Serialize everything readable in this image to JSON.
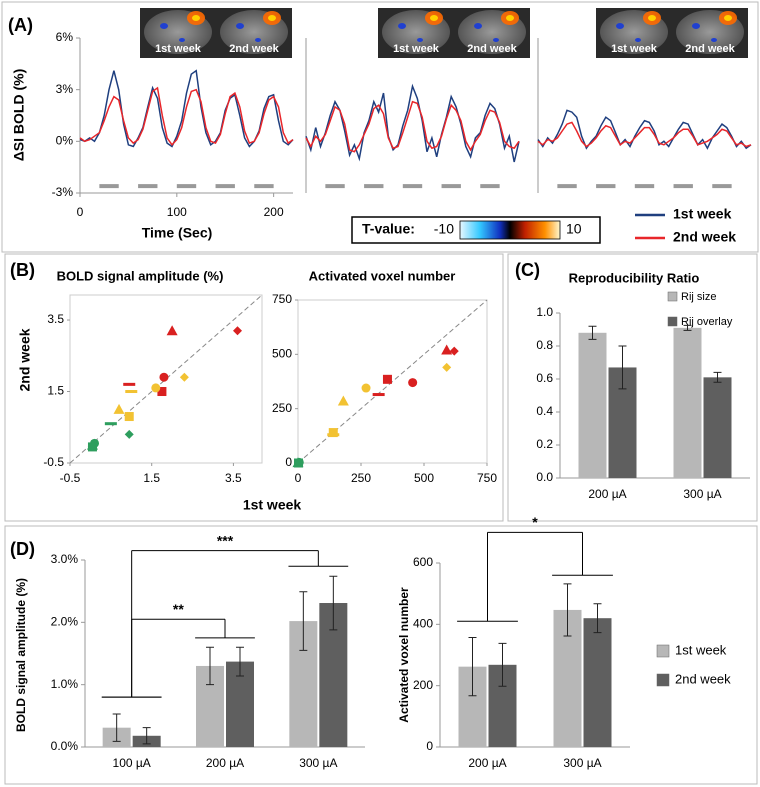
{
  "chart_data": [
    {
      "type": "line",
      "panel": "(A)",
      "ylabel": "ΔSI BOLD (%)",
      "xlabel": "Time (Sec)",
      "xlim": [
        0,
        220
      ],
      "xticks": [
        0,
        100,
        200
      ],
      "ylim": [
        -3,
        6
      ],
      "yticks": [
        {
          "value": -3,
          "label": "-3%"
        },
        {
          "value": 0,
          "label": "0%"
        },
        {
          "value": 3,
          "label": "3%"
        },
        {
          "value": 6,
          "label": "6%"
        }
      ],
      "x": [
        0,
        5,
        10,
        15,
        20,
        25,
        30,
        35,
        40,
        45,
        50,
        55,
        60,
        65,
        70,
        75,
        80,
        85,
        90,
        95,
        100,
        105,
        110,
        115,
        120,
        125,
        130,
        135,
        140,
        145,
        150,
        155,
        160,
        165,
        170,
        175,
        180,
        185,
        190,
        195,
        200,
        205,
        210,
        215,
        220
      ],
      "stimulus": {
        "level": -2.6,
        "blocks": [
          [
            20,
            40
          ],
          [
            60,
            80
          ],
          [
            100,
            120
          ],
          [
            140,
            160
          ],
          [
            180,
            200
          ]
        ]
      },
      "colorbar": {
        "label": "T-value:",
        "lim": [
          -10,
          10
        ],
        "ticks": [
          -10,
          10
        ]
      },
      "subplots": [
        {
          "inset_labels": [
            "1st week",
            "2nd week"
          ],
          "series": [
            {
              "name": "1st week",
              "color": "#1f3f7f",
              "values": [
                0.1,
                0.0,
                0.2,
                0.0,
                0.5,
                1.5,
                3.0,
                4.1,
                3.0,
                1.0,
                -0.2,
                -0.3,
                0.2,
                0.8,
                2.0,
                3.1,
                2.5,
                0.8,
                -0.1,
                -0.3,
                0.3,
                1.2,
                2.8,
                3.9,
                4.1,
                2.0,
                0.5,
                -0.2,
                0.0,
                0.5,
                1.8,
                2.5,
                2.7,
                1.5,
                0.2,
                -0.3,
                0.0,
                0.6,
                1.9,
                2.6,
                2.7,
                1.2,
                0.0,
                -0.2,
                0.1
              ]
            },
            {
              "name": "2nd week",
              "color": "#e8262a",
              "values": [
                0.2,
                0.0,
                0.1,
                0.3,
                0.5,
                1.2,
                2.0,
                2.6,
                2.4,
                1.2,
                0.2,
                -0.1,
                0.1,
                0.7,
                1.8,
                2.9,
                3.1,
                1.5,
                0.2,
                -0.2,
                0.1,
                0.8,
                2.0,
                2.9,
                3.0,
                2.3,
                0.8,
                0.0,
                -0.1,
                0.4,
                1.6,
                2.6,
                2.8,
                2.0,
                0.6,
                -0.1,
                0.0,
                0.5,
                1.6,
                2.4,
                2.6,
                2.0,
                0.5,
                -0.1,
                0.1
              ]
            }
          ]
        },
        {
          "inset_labels": [
            "1st week",
            "2nd week"
          ],
          "series": [
            {
              "name": "1st week",
              "color": "#1f3f7f",
              "values": [
                0.3,
                -0.5,
                0.8,
                -0.3,
                0.5,
                1.5,
                2.3,
                1.8,
                0.6,
                -0.8,
                -0.2,
                -1.0,
                0.5,
                1.2,
                2.3,
                1.7,
                2.8,
                0.3,
                -0.5,
                -0.2,
                0.9,
                1.8,
                3.2,
                2.5,
                1.2,
                -0.6,
                0.2,
                -0.9,
                0.4,
                1.4,
                2.6,
                2.0,
                1.0,
                -0.3,
                -0.9,
                0.2,
                0.5,
                1.5,
                2.2,
                1.9,
                1.0,
                -0.4,
                0.3,
                -1.2,
                0.0
              ]
            },
            {
              "name": "2nd week",
              "color": "#e8262a",
              "values": [
                0.2,
                -0.3,
                0.3,
                0.0,
                0.4,
                1.2,
                2.0,
                1.8,
                1.0,
                -0.5,
                -0.6,
                -0.2,
                0.4,
                1.0,
                1.9,
                2.1,
                1.6,
                0.2,
                -0.4,
                -0.3,
                0.5,
                1.4,
                2.3,
                2.2,
                1.4,
                0.0,
                -0.4,
                -0.3,
                0.3,
                1.3,
                2.1,
                1.8,
                1.2,
                0.0,
                -0.5,
                0.0,
                0.4,
                1.2,
                1.8,
                1.7,
                1.1,
                0.0,
                -0.3,
                -0.4,
                0.0
              ]
            }
          ]
        },
        {
          "inset_labels": [
            "1st week",
            "2nd week"
          ],
          "series": [
            {
              "name": "1st week",
              "color": "#1f3f7f",
              "values": [
                0.1,
                -0.3,
                0.2,
                -0.1,
                0.4,
                1.0,
                1.8,
                1.7,
                1.4,
                0.3,
                -0.4,
                0.0,
                0.3,
                0.9,
                1.4,
                1.2,
                0.5,
                -0.2,
                0.1,
                -0.3,
                0.3,
                0.8,
                1.2,
                1.1,
                0.6,
                -0.2,
                0.0,
                -0.3,
                0.2,
                0.7,
                1.1,
                1.0,
                0.4,
                -0.2,
                0.1,
                -0.4,
                0.2,
                0.6,
                1.0,
                0.8,
                0.3,
                -0.3,
                0.0,
                -0.4,
                -0.2
              ]
            },
            {
              "name": "2nd week",
              "color": "#e8262a",
              "values": [
                0.0,
                -0.2,
                0.1,
                0.0,
                0.2,
                0.6,
                1.0,
                1.1,
                0.6,
                0.0,
                -0.3,
                -0.1,
                0.2,
                0.6,
                0.9,
                0.8,
                0.3,
                -0.2,
                0.0,
                -0.1,
                0.2,
                0.5,
                0.8,
                0.8,
                0.4,
                -0.1,
                -0.2,
                0.0,
                0.2,
                0.5,
                0.7,
                0.7,
                0.3,
                -0.2,
                -0.1,
                0.0,
                0.2,
                0.4,
                0.7,
                0.6,
                0.2,
                -0.2,
                -0.1,
                -0.3,
                -0.2
              ]
            }
          ]
        }
      ]
    },
    {
      "type": "scatter",
      "panel": "(B)",
      "title": "BOLD signal amplitude (%)",
      "xlabel": "1st week",
      "ylabel": "2nd week",
      "xlim": [
        -0.5,
        4.2
      ],
      "xticks": [
        -0.5,
        1.5,
        3.5
      ],
      "ylim": [
        -0.5,
        4.2
      ],
      "yticks": [
        -0.5,
        1.5,
        3.5
      ],
      "points": [
        {
          "x": 2.0,
          "y": 3.2,
          "shape": "triangle",
          "color": "#d92020"
        },
        {
          "x": 3.6,
          "y": 3.2,
          "shape": "diamond",
          "color": "#d92020"
        },
        {
          "x": 1.8,
          "y": 1.9,
          "shape": "circle",
          "color": "#d92020"
        },
        {
          "x": 1.75,
          "y": 1.5,
          "shape": "square",
          "color": "#d92020"
        },
        {
          "x": 0.95,
          "y": 1.7,
          "shape": "dash",
          "color": "#d92020"
        },
        {
          "x": 2.3,
          "y": 1.9,
          "shape": "diamond",
          "color": "#f2c232"
        },
        {
          "x": 1.6,
          "y": 1.6,
          "shape": "circle",
          "color": "#f2c232"
        },
        {
          "x": 1.0,
          "y": 1.5,
          "shape": "dash",
          "color": "#f2c232"
        },
        {
          "x": 0.7,
          "y": 1.0,
          "shape": "triangle",
          "color": "#f2c232"
        },
        {
          "x": 0.95,
          "y": 0.8,
          "shape": "square",
          "color": "#f2c232"
        },
        {
          "x": 0.5,
          "y": 0.6,
          "shape": "dash",
          "color": "#2e9e5e"
        },
        {
          "x": 0.95,
          "y": 0.3,
          "shape": "diamond",
          "color": "#2e9e5e"
        },
        {
          "x": 0.1,
          "y": 0.05,
          "shape": "circle",
          "color": "#2e9e5e"
        },
        {
          "x": 0.05,
          "y": -0.05,
          "shape": "square",
          "color": "#2e9e5e"
        },
        {
          "x": 0.05,
          "y": 0.0,
          "shape": "triangle",
          "color": "#2e9e5e"
        }
      ]
    },
    {
      "type": "scatter",
      "title": "Activated voxel number",
      "xlim": [
        0,
        750
      ],
      "xticks": [
        0,
        250,
        500,
        750
      ],
      "ylim": [
        0,
        750
      ],
      "yticks": [
        0,
        250,
        500,
        750
      ],
      "points": [
        {
          "x": 620,
          "y": 515,
          "shape": "diamond",
          "color": "#d92020"
        },
        {
          "x": 590,
          "y": 520,
          "shape": "triangle",
          "color": "#d92020"
        },
        {
          "x": 455,
          "y": 370,
          "shape": "circle",
          "color": "#d92020"
        },
        {
          "x": 355,
          "y": 385,
          "shape": "square",
          "color": "#d92020"
        },
        {
          "x": 320,
          "y": 315,
          "shape": "dash",
          "color": "#d92020"
        },
        {
          "x": 590,
          "y": 440,
          "shape": "diamond",
          "color": "#f2c232"
        },
        {
          "x": 270,
          "y": 345,
          "shape": "circle",
          "color": "#f2c232"
        },
        {
          "x": 180,
          "y": 285,
          "shape": "triangle",
          "color": "#f2c232"
        },
        {
          "x": 140,
          "y": 140,
          "shape": "square",
          "color": "#f2c232"
        },
        {
          "x": 140,
          "y": 130,
          "shape": "dash",
          "color": "#f2c232"
        },
        {
          "x": 5,
          "y": 3,
          "shape": "circle",
          "color": "#2e9e5e"
        },
        {
          "x": 2,
          "y": 0,
          "shape": "square",
          "color": "#2e9e5e"
        },
        {
          "x": 0,
          "y": 2,
          "shape": "triangle",
          "color": "#2e9e5e"
        }
      ]
    },
    {
      "type": "bar",
      "panel": "(C)",
      "title": "Reproducibility Ratio",
      "categories": [
        "200 µA",
        "300 µA"
      ],
      "ylim": [
        0,
        1.0
      ],
      "yticks": [
        {
          "value": 0,
          "label": "0.0"
        },
        0.2,
        0.4,
        0.6,
        0.8,
        {
          "value": 1,
          "label": "1.0"
        }
      ],
      "series": [
        {
          "name": "Rij size",
          "color": "#b7b7b7",
          "values": [
            0.88,
            0.91
          ],
          "errors": [
            0.04,
            0.015
          ]
        },
        {
          "name": "Rij overlay",
          "color": "#5f5f5f",
          "values": [
            0.67,
            0.61
          ],
          "errors": [
            0.13,
            0.03
          ]
        }
      ]
    },
    {
      "type": "bar",
      "panel": "(D)",
      "ylabel": "BOLD signal amplitude (%)",
      "categories": [
        "100 µA",
        "200 µA",
        "300 µA"
      ],
      "ylim": [
        0,
        3.0
      ],
      "yticks": [
        {
          "value": 0,
          "label": "0.0%"
        },
        {
          "value": 1,
          "label": "1.0%"
        },
        {
          "value": 2,
          "label": "2.0%"
        },
        {
          "value": 3,
          "label": "3.0%"
        }
      ],
      "series": [
        {
          "name": "1st week",
          "color": "#b7b7b7",
          "values": [
            0.31,
            1.3,
            2.02
          ],
          "errors": [
            0.22,
            0.3,
            0.47
          ]
        },
        {
          "name": "2nd week",
          "color": "#5f5f5f",
          "values": [
            0.18,
            1.37,
            2.31
          ],
          "errors": [
            0.13,
            0.23,
            0.43
          ]
        }
      ],
      "significance": [
        {
          "text": "**",
          "from": "100 µA",
          "to": "200 µA",
          "y": 2.05,
          "ends": [
            0.8,
            1.75
          ]
        },
        {
          "text": "***",
          "from": "100 µA",
          "to": "300 µA",
          "y": 3.15,
          "ends": [
            0.8,
            2.9
          ]
        }
      ]
    },
    {
      "type": "bar",
      "ylabel": "Activated voxel number",
      "legend": "right",
      "categories": [
        "200 µA",
        "300 µA"
      ],
      "ylim": [
        0,
        600
      ],
      "yticks": [
        0,
        200,
        400,
        600
      ],
      "series": [
        {
          "name": "1st week",
          "color": "#b7b7b7",
          "values": [
            262,
            447
          ],
          "errors": [
            95,
            85
          ]
        },
        {
          "name": "2nd week",
          "color": "#5f5f5f",
          "values": [
            268,
            420
          ],
          "errors": [
            70,
            47
          ]
        }
      ],
      "significance": [
        {
          "text": "*",
          "from": "200 µA",
          "to": "300 µA",
          "y": 700,
          "ends": [
            410,
            560
          ]
        }
      ]
    }
  ]
}
